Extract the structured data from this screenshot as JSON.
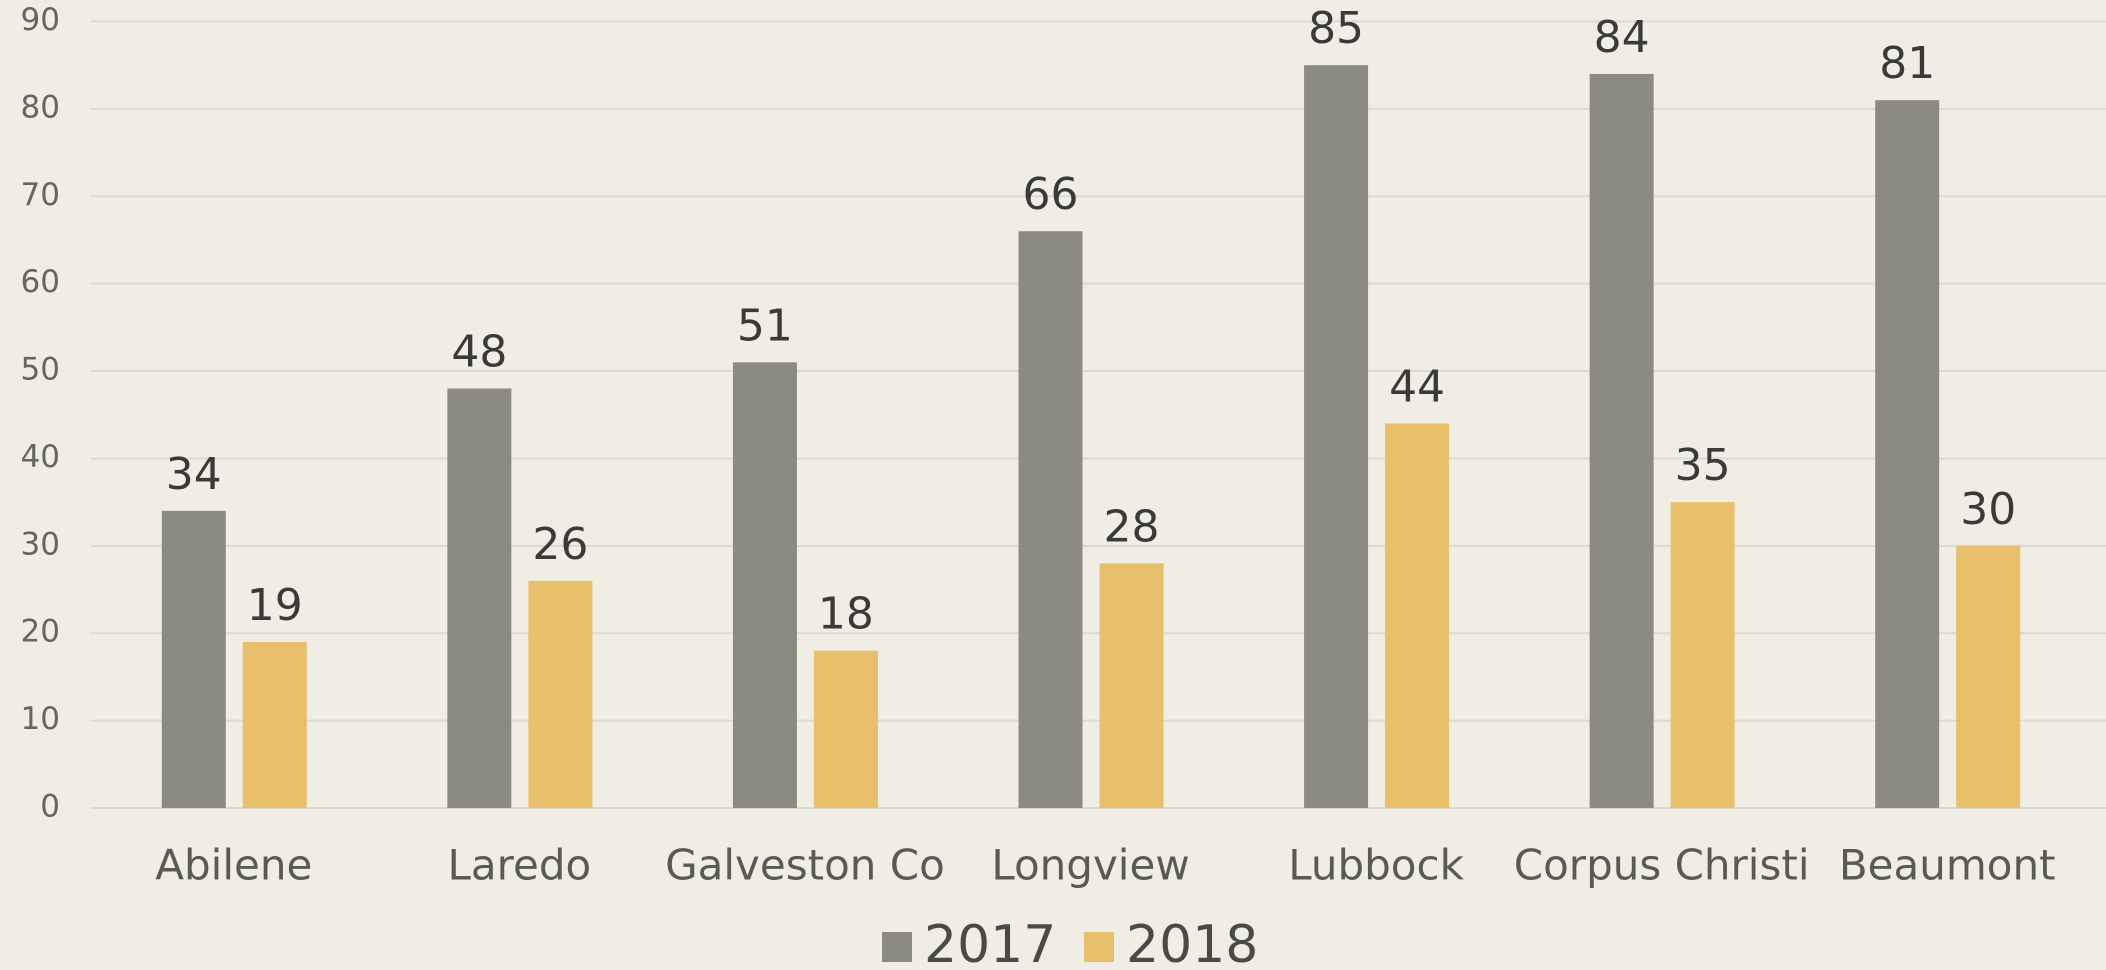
{
  "chart_data": {
    "type": "bar",
    "categories": [
      "Abilene",
      "Laredo",
      "Galveston Co",
      "Longview",
      "Lubbock",
      "Corpus Christi",
      "Beaumont"
    ],
    "series": [
      {
        "name": "2017",
        "color": "#8b8b84",
        "values": [
          34,
          48,
          51,
          66,
          85,
          84,
          81
        ]
      },
      {
        "name": "2018",
        "color": "#e8bf6a",
        "values": [
          19,
          26,
          18,
          28,
          44,
          35,
          30
        ]
      }
    ],
    "ylim": [
      0,
      90
    ],
    "yticks": [
      0,
      10,
      20,
      30,
      40,
      50,
      60,
      70,
      80,
      90
    ],
    "grid": true,
    "legend": "bottom"
  }
}
